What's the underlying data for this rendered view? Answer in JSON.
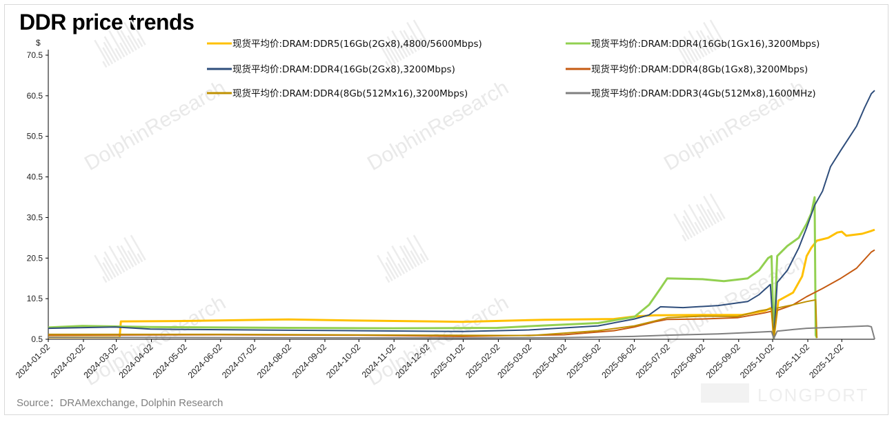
{
  "title": "DDR price trends",
  "source": "Source：DRAMexchange,  Dolphin  Research",
  "watermark": "DolphinResearch",
  "brand": "LONGPORT",
  "chart_data": {
    "type": "line",
    "yunit": "$",
    "ylim": [
      0.5,
      70.5
    ],
    "yticks": [
      "0.5",
      "10.5",
      "20.5",
      "30.5",
      "40.5",
      "50.5",
      "60.5",
      "70.5"
    ],
    "xlim": [
      "2024-01-02",
      "2025-12-31"
    ],
    "xticks": [
      "2024-01-02",
      "2024-02-02",
      "2024-03-02",
      "2024-04-02",
      "2024-05-02",
      "2024-06-02",
      "2024-07-02",
      "2024-08-02",
      "2024-09-02",
      "2024-10-02",
      "2024-11-02",
      "2024-12-02",
      "2025-01-02",
      "2025-02-02",
      "2025-03-02",
      "2025-04-02",
      "2025-05-02",
      "2025-06-02",
      "2025-07-02",
      "2025-08-02",
      "2025-09-02",
      "2025-10-02",
      "2025-11-02",
      "2025-12-02"
    ],
    "legend_position": "top",
    "series": [
      {
        "name": "现货平均价:DRAM:DDR5(16Gb(2Gx8),4800/5600Mbps)",
        "color": "#ffc000",
        "width": 3,
        "points": [
          [
            "2024-01-02",
            1.0
          ],
          [
            "2024-03-05",
            1.0
          ],
          [
            "2024-03-06",
            4.9
          ],
          [
            "2024-05-01",
            5.0
          ],
          [
            "2024-08-01",
            5.4
          ],
          [
            "2024-10-01",
            5.1
          ],
          [
            "2025-01-01",
            4.8
          ],
          [
            "2025-03-15",
            5.3
          ],
          [
            "2025-05-15",
            5.5
          ],
          [
            "2025-06-02",
            6.1
          ],
          [
            "2025-06-20",
            6.4
          ],
          [
            "2025-08-01",
            6.5
          ],
          [
            "2025-09-05",
            6.5
          ],
          [
            "2025-09-25",
            7.5
          ],
          [
            "2025-10-01",
            8.3
          ],
          [
            "2025-10-03",
            0.8
          ],
          [
            "2025-10-07",
            10.0
          ],
          [
            "2025-10-20",
            12.0
          ],
          [
            "2025-10-28",
            16.0
          ],
          [
            "2025-11-01",
            21.0
          ],
          [
            "2025-11-05",
            23.0
          ],
          [
            "2025-11-10",
            24.8
          ],
          [
            "2025-11-20",
            25.5
          ],
          [
            "2025-11-28",
            26.8
          ],
          [
            "2025-12-02",
            27.0
          ],
          [
            "2025-12-06",
            26.0
          ],
          [
            "2025-12-20",
            26.5
          ],
          [
            "2025-12-28",
            27.2
          ],
          [
            "2025-12-31",
            27.5
          ]
        ]
      },
      {
        "name": "现货平均价:DRAM:DDR4(16Gb(1Gx16),3200Mbps)",
        "color": "#92d050",
        "width": 3,
        "points": [
          [
            "2024-01-02",
            3.4
          ],
          [
            "2024-02-01",
            3.8
          ],
          [
            "2024-04-01",
            3.5
          ],
          [
            "2024-08-01",
            3.3
          ],
          [
            "2024-11-01",
            3.2
          ],
          [
            "2025-02-01",
            3.3
          ],
          [
            "2025-03-15",
            3.9
          ],
          [
            "2025-05-01",
            4.5
          ],
          [
            "2025-06-02",
            6.0
          ],
          [
            "2025-06-15",
            9.0
          ],
          [
            "2025-06-25",
            13.0
          ],
          [
            "2025-07-01",
            15.5
          ],
          [
            "2025-08-01",
            15.3
          ],
          [
            "2025-08-20",
            14.8
          ],
          [
            "2025-09-10",
            15.5
          ],
          [
            "2025-09-20",
            17.5
          ],
          [
            "2025-09-28",
            20.5
          ],
          [
            "2025-10-01",
            21.0
          ],
          [
            "2025-10-03",
            0.8
          ],
          [
            "2025-10-06",
            21.0
          ],
          [
            "2025-10-15",
            23.5
          ],
          [
            "2025-10-25",
            25.5
          ],
          [
            "2025-11-01",
            29.0
          ],
          [
            "2025-11-05",
            31.5
          ],
          [
            "2025-11-08",
            35.5
          ],
          [
            "2025-11-09",
            1.5
          ],
          [
            "2025-11-10",
            0.8
          ]
        ]
      },
      {
        "name": "现货平均价:DRAM:DDR4(16Gb(2Gx8),3200Mbps)",
        "color": "#2e4d7b",
        "width": 2,
        "points": [
          [
            "2024-01-02",
            3.2
          ],
          [
            "2024-03-01",
            3.5
          ],
          [
            "2024-04-01",
            3.0
          ],
          [
            "2024-07-01",
            2.8
          ],
          [
            "2024-10-01",
            2.6
          ],
          [
            "2025-01-01",
            2.4
          ],
          [
            "2025-03-01",
            2.8
          ],
          [
            "2025-05-01",
            3.8
          ],
          [
            "2025-06-02",
            5.5
          ],
          [
            "2025-06-15",
            6.5
          ],
          [
            "2025-06-25",
            8.5
          ],
          [
            "2025-07-15",
            8.3
          ],
          [
            "2025-08-15",
            8.8
          ],
          [
            "2025-09-10",
            9.8
          ],
          [
            "2025-09-20",
            11.5
          ],
          [
            "2025-09-30",
            14.0
          ],
          [
            "2025-10-03",
            0.8
          ],
          [
            "2025-10-06",
            14.5
          ],
          [
            "2025-10-15",
            17.5
          ],
          [
            "2025-10-25",
            23.0
          ],
          [
            "2025-11-01",
            28.0
          ],
          [
            "2025-11-08",
            33.5
          ],
          [
            "2025-11-15",
            37.0
          ],
          [
            "2025-11-22",
            43.0
          ],
          [
            "2025-12-01",
            47.0
          ],
          [
            "2025-12-08",
            50.0
          ],
          [
            "2025-12-15",
            53.0
          ],
          [
            "2025-12-22",
            57.5
          ],
          [
            "2025-12-28",
            61.0
          ],
          [
            "2025-12-31",
            61.8
          ]
        ]
      },
      {
        "name": "现货平均价:DRAM:DDR4(8Gb(1Gx8),3200Mbps)",
        "color": "#c55a11",
        "width": 2,
        "points": [
          [
            "2024-01-02",
            1.5
          ],
          [
            "2024-06-01",
            1.6
          ],
          [
            "2024-10-01",
            1.5
          ],
          [
            "2025-01-01",
            1.2
          ],
          [
            "2025-04-01",
            1.6
          ],
          [
            "2025-05-15",
            2.6
          ],
          [
            "2025-06-02",
            3.5
          ],
          [
            "2025-06-20",
            4.8
          ],
          [
            "2025-07-01",
            5.4
          ],
          [
            "2025-08-01",
            5.5
          ],
          [
            "2025-09-01",
            5.8
          ],
          [
            "2025-09-25",
            7.0
          ],
          [
            "2025-10-01",
            7.4
          ],
          [
            "2025-10-03",
            0.8
          ],
          [
            "2025-10-06",
            7.6
          ],
          [
            "2025-10-20",
            9.0
          ],
          [
            "2025-11-01",
            11.0
          ],
          [
            "2025-11-15",
            13.0
          ],
          [
            "2025-12-01",
            15.5
          ],
          [
            "2025-12-15",
            18.0
          ],
          [
            "2025-12-28",
            22.0
          ],
          [
            "2025-12-31",
            22.5
          ]
        ]
      },
      {
        "name": "现货平均价:DRAM:DDR4(8Gb(512Mx16),3200Mbps)",
        "color": "#bf9000",
        "width": 2,
        "points": [
          [
            "2024-01-02",
            1.7
          ],
          [
            "2024-06-01",
            1.7
          ],
          [
            "2024-12-01",
            1.5
          ],
          [
            "2025-03-01",
            1.4
          ],
          [
            "2025-05-01",
            2.6
          ],
          [
            "2025-06-02",
            3.8
          ],
          [
            "2025-06-20",
            5.0
          ],
          [
            "2025-07-01",
            5.8
          ],
          [
            "2025-08-01",
            6.2
          ],
          [
            "2025-09-01",
            6.1
          ],
          [
            "2025-09-20",
            7.5
          ],
          [
            "2025-10-01",
            8.0
          ],
          [
            "2025-10-03",
            0.8
          ],
          [
            "2025-10-06",
            8.2
          ],
          [
            "2025-10-20",
            9.0
          ],
          [
            "2025-11-01",
            9.8
          ],
          [
            "2025-11-09",
            10.2
          ],
          [
            "2025-11-10",
            0.8
          ]
        ]
      },
      {
        "name": "现货平均价:DRAM:DDR3(4Gb(512Mx8),1600MHz)",
        "color": "#7f7f7f",
        "width": 2,
        "points": [
          [
            "2024-01-02",
            1.0
          ],
          [
            "2024-06-01",
            0.9
          ],
          [
            "2025-01-01",
            0.8
          ],
          [
            "2025-04-01",
            0.9
          ],
          [
            "2025-06-01",
            1.2
          ],
          [
            "2025-07-01",
            1.5
          ],
          [
            "2025-08-15",
            1.8
          ],
          [
            "2025-09-15",
            2.2
          ],
          [
            "2025-10-01",
            2.4
          ],
          [
            "2025-10-03",
            0.7
          ],
          [
            "2025-10-06",
            2.5
          ],
          [
            "2025-10-20",
            2.9
          ],
          [
            "2025-11-01",
            3.2
          ],
          [
            "2025-12-01",
            3.5
          ],
          [
            "2025-12-25",
            3.8
          ],
          [
            "2025-12-28",
            3.6
          ],
          [
            "2025-12-31",
            0.5
          ]
        ]
      }
    ]
  }
}
